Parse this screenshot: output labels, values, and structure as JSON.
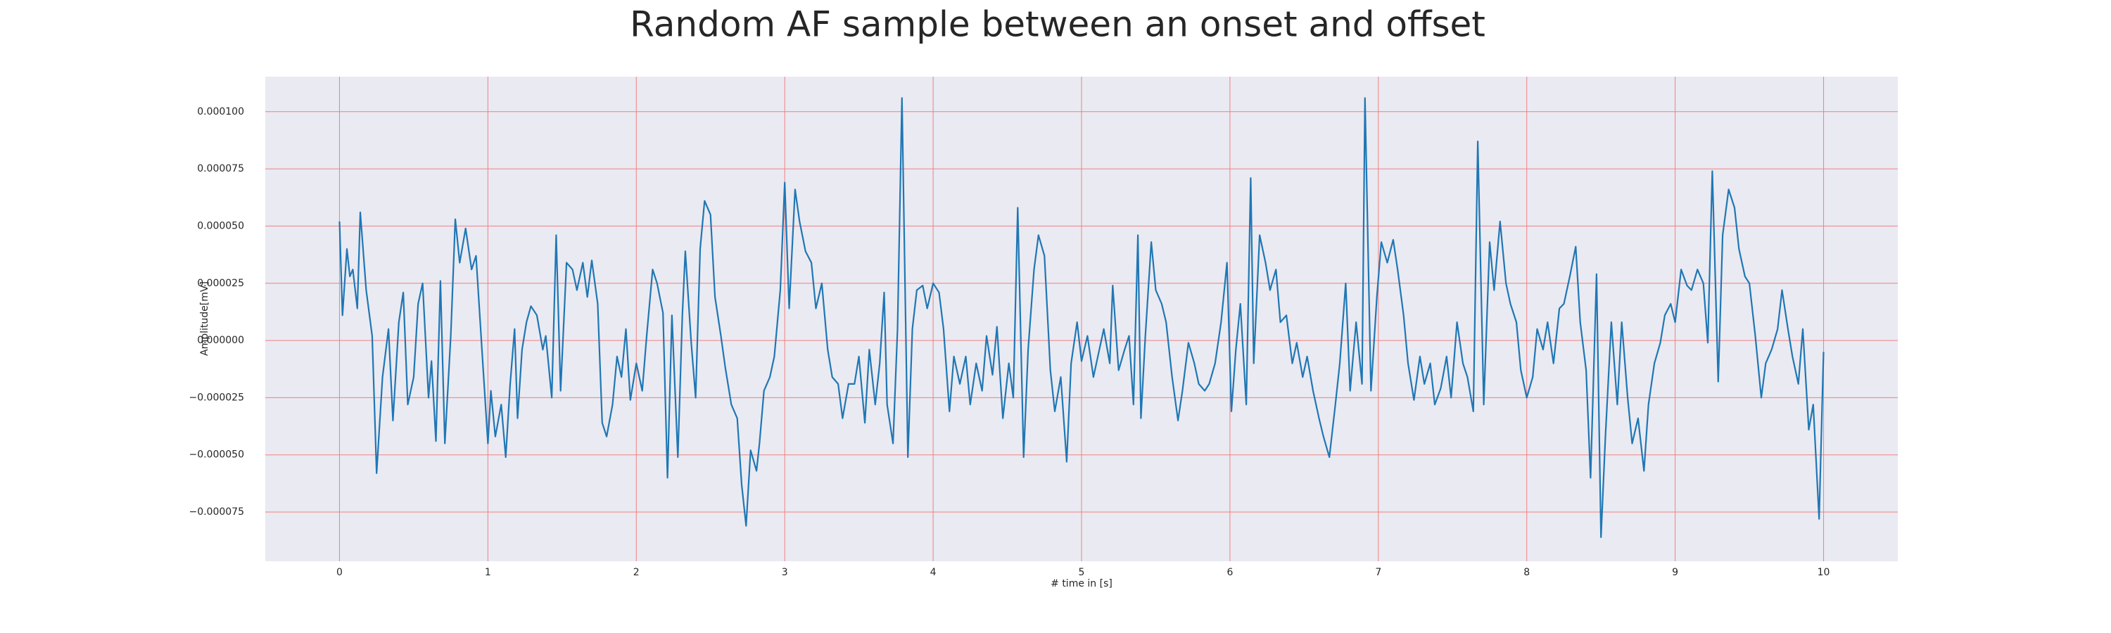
{
  "chart_data": {
    "type": "line",
    "title": "Random AF sample between an onset and offset",
    "xlabel": "# time in [s]",
    "ylabel": "Amplitude[mV]",
    "color": "#1f77b4",
    "grid": true,
    "grid_color": "#f08080",
    "background": "#eaeaf2",
    "xlim": [
      -0.5,
      10.5
    ],
    "ylim": [
      -9.65e-05,
      0.0001153
    ],
    "xticks": [
      0,
      1,
      2,
      3,
      4,
      5,
      6,
      7,
      8,
      9,
      10
    ],
    "yticks": [
      {
        "value": -7.5e-05,
        "label": "−0.000075"
      },
      {
        "value": -5e-05,
        "label": "−0.000050"
      },
      {
        "value": -2.5e-05,
        "label": "−0.000025"
      },
      {
        "value": 0,
        "label": "0.000000"
      },
      {
        "value": 2.5e-05,
        "label": "0.000025"
      },
      {
        "value": 5e-05,
        "label": "0.000050"
      },
      {
        "value": 7.5e-05,
        "label": "0.000075"
      },
      {
        "value": 0.0001,
        "label": "0.000100"
      }
    ],
    "x": [
      0,
      0.02,
      0.05,
      0.07,
      0.09,
      0.12,
      0.14,
      0.18,
      0.22,
      0.25,
      0.29,
      0.33,
      0.36,
      0.4,
      0.43,
      0.46,
      0.5,
      0.53,
      0.56,
      0.6,
      0.62,
      0.65,
      0.68,
      0.71,
      0.75,
      0.78,
      0.81,
      0.85,
      0.89,
      0.92,
      0.96,
      1.0,
      1.02,
      1.05,
      1.09,
      1.12,
      1.15,
      1.18,
      1.2,
      1.23,
      1.26,
      1.29,
      1.33,
      1.37,
      1.39,
      1.43,
      1.46,
      1.49,
      1.53,
      1.57,
      1.6,
      1.64,
      1.67,
      1.7,
      1.74,
      1.77,
      1.8,
      1.84,
      1.87,
      1.9,
      1.93,
      1.96,
      2.0,
      2.04,
      2.07,
      2.11,
      2.14,
      2.18,
      2.21,
      2.24,
      2.28,
      2.31,
      2.33,
      2.37,
      2.4,
      2.43,
      2.46,
      2.5,
      2.53,
      2.57,
      2.6,
      2.64,
      2.68,
      2.71,
      2.74,
      2.77,
      2.81,
      2.83,
      2.86,
      2.9,
      2.93,
      2.97,
      3.0,
      3.03,
      3.07,
      3.1,
      3.14,
      3.18,
      3.21,
      3.25,
      3.29,
      3.32,
      3.36,
      3.39,
      3.43,
      3.47,
      3.5,
      3.54,
      3.57,
      3.61,
      3.64,
      3.67,
      3.69,
      3.73,
      3.76,
      3.79,
      3.83,
      3.86,
      3.89,
      3.93,
      3.96,
      4.0,
      4.04,
      4.07,
      4.11,
      4.14,
      4.18,
      4.22,
      4.25,
      4.29,
      4.33,
      4.36,
      4.4,
      4.43,
      4.47,
      4.51,
      4.54,
      4.57,
      4.61,
      4.64,
      4.68,
      4.71,
      4.75,
      4.79,
      4.82,
      4.86,
      4.9,
      4.93,
      4.97,
      5.0,
      5.04,
      5.08,
      5.11,
      5.15,
      5.19,
      5.21,
      5.25,
      5.29,
      5.32,
      5.35,
      5.38,
      5.4,
      5.43,
      5.47,
      5.5,
      5.54,
      5.57,
      5.61,
      5.65,
      5.68,
      5.72,
      5.76,
      5.79,
      5.83,
      5.86,
      5.9,
      5.94,
      5.98,
      6.01,
      6.04,
      6.07,
      6.11,
      6.14,
      6.16,
      6.2,
      6.24,
      6.27,
      6.31,
      6.34,
      6.38,
      6.42,
      6.45,
      6.49,
      6.52,
      6.56,
      6.6,
      6.63,
      6.67,
      6.71,
      6.74,
      6.78,
      6.81,
      6.85,
      6.89,
      6.91,
      6.95,
      6.99,
      7.02,
      7.06,
      7.1,
      7.13,
      7.17,
      7.2,
      7.24,
      7.28,
      7.31,
      7.35,
      7.38,
      7.42,
      7.46,
      7.49,
      7.53,
      7.57,
      7.6,
      7.64,
      7.67,
      7.71,
      7.75,
      7.78,
      7.82,
      7.86,
      7.89,
      7.93,
      7.96,
      8.0,
      8.04,
      8.07,
      8.11,
      8.14,
      8.18,
      8.22,
      8.25,
      8.29,
      8.33,
      8.36,
      8.4,
      8.43,
      8.47,
      8.5,
      8.53,
      8.57,
      8.61,
      8.64,
      8.68,
      8.71,
      8.75,
      8.79,
      8.82,
      8.86,
      8.9,
      8.93,
      8.97,
      9.0,
      9.04,
      9.08,
      9.11,
      9.15,
      9.19,
      9.22,
      9.25,
      9.29,
      9.32,
      9.36,
      9.4,
      9.43,
      9.47,
      9.5,
      9.54,
      9.58,
      9.61,
      9.65,
      9.69,
      9.72,
      9.76,
      9.79,
      9.83,
      9.86,
      9.9,
      9.93,
      9.97,
      10.0
    ],
    "values": [
      5.2e-05,
      1.1e-05,
      4e-05,
      2.8e-05,
      3.1e-05,
      1.4e-05,
      5.6e-05,
      2.2e-05,
      2e-06,
      -5.8e-05,
      -1.6e-05,
      5e-06,
      -3.5e-05,
      8e-06,
      2.1e-05,
      -2.8e-05,
      -1.6e-05,
      1.6e-05,
      2.5e-05,
      -2.5e-05,
      -9e-06,
      -4.4e-05,
      2.6e-05,
      -4.5e-05,
      2e-06,
      5.3e-05,
      3.4e-05,
      4.9e-05,
      3.1e-05,
      3.7e-05,
      -4e-06,
      -4.5e-05,
      -2.2e-05,
      -4.2e-05,
      -2.8e-05,
      -5.1e-05,
      -1.9e-05,
      5e-06,
      -3.4e-05,
      -4e-06,
      8e-06,
      1.5e-05,
      1.1e-05,
      -4e-06,
      2e-06,
      -2.5e-05,
      4.6e-05,
      -2.2e-05,
      3.4e-05,
      3.1e-05,
      2.2e-05,
      3.4e-05,
      1.9e-05,
      3.5e-05,
      1.6e-05,
      -3.6e-05,
      -4.2e-05,
      -2.8e-05,
      -7e-06,
      -1.6e-05,
      5e-06,
      -2.6e-05,
      -1e-05,
      -2.2e-05,
      2e-06,
      3.1e-05,
      2.5e-05,
      1.2e-05,
      -6e-05,
      1.1e-05,
      -5.1e-05,
      1.1e-05,
      3.9e-05,
      -1e-06,
      -2.5e-05,
      4e-05,
      6.1e-05,
      5.5e-05,
      1.9e-05,
      2e-06,
      -1.2e-05,
      -2.8e-05,
      -3.4e-05,
      -6.3e-05,
      -8.1e-05,
      -4.8e-05,
      -5.7e-05,
      -4.5e-05,
      -2.2e-05,
      -1.6e-05,
      -7e-06,
      2.2e-05,
      6.9e-05,
      1.4e-05,
      6.6e-05,
      5.2e-05,
      3.9e-05,
      3.4e-05,
      1.4e-05,
      2.5e-05,
      -4e-06,
      -1.6e-05,
      -1.9e-05,
      -3.4e-05,
      -1.9e-05,
      -1.9e-05,
      -7e-06,
      -3.6e-05,
      -4e-06,
      -2.8e-05,
      -1e-05,
      2.1e-05,
      -2.8e-05,
      -4.5e-05,
      5e-06,
      0.000106,
      -5.1e-05,
      5e-06,
      2.2e-05,
      2.4e-05,
      1.4e-05,
      2.5e-05,
      2.1e-05,
      5e-06,
      -3.1e-05,
      -7e-06,
      -1.9e-05,
      -7e-06,
      -2.8e-05,
      -1e-05,
      -2.2e-05,
      2e-06,
      -1.5e-05,
      6e-06,
      -3.4e-05,
      -1e-05,
      -2.5e-05,
      5.8e-05,
      -5.1e-05,
      -4e-06,
      3.1e-05,
      4.6e-05,
      3.7e-05,
      -1.3e-05,
      -3.1e-05,
      -1.6e-05,
      -5.3e-05,
      -1e-05,
      8e-06,
      -9e-06,
      2e-06,
      -1.6e-05,
      -7e-06,
      5e-06,
      -1e-05,
      2.4e-05,
      -1.3e-05,
      -4e-06,
      2e-06,
      -2.8e-05,
      4.6e-05,
      -3.4e-05,
      2e-06,
      4.3e-05,
      2.2e-05,
      1.6e-05,
      8e-06,
      -1.6e-05,
      -3.5e-05,
      -2.2e-05,
      -1e-06,
      -1e-05,
      -1.9e-05,
      -2.2e-05,
      -1.9e-05,
      -1e-05,
      8e-06,
      3.4e-05,
      -3.1e-05,
      -4e-06,
      1.6e-05,
      -2.8e-05,
      7.1e-05,
      -1e-05,
      4.6e-05,
      3.4e-05,
      2.2e-05,
      3.1e-05,
      8e-06,
      1.1e-05,
      -1e-05,
      -1e-06,
      -1.6e-05,
      -7e-06,
      -2.2e-05,
      -3.4e-05,
      -4.2e-05,
      -5.1e-05,
      -2.8e-05,
      -1e-05,
      2.5e-05,
      -2.2e-05,
      8e-06,
      -1.9e-05,
      0.000106,
      -2.2e-05,
      1.9e-05,
      4.3e-05,
      3.4e-05,
      4.4e-05,
      3.1e-05,
      1.1e-05,
      -1e-05,
      -2.6e-05,
      -7e-06,
      -1.9e-05,
      -1e-05,
      -2.8e-05,
      -2.1e-05,
      -7e-06,
      -2.5e-05,
      8e-06,
      -1e-05,
      -1.6e-05,
      -3.1e-05,
      8.7e-05,
      -2.8e-05,
      4.3e-05,
      2.2e-05,
      5.2e-05,
      2.5e-05,
      1.6e-05,
      8e-06,
      -1.3e-05,
      -2.5e-05,
      -1.6e-05,
      5e-06,
      -4e-06,
      8e-06,
      -1e-05,
      1.4e-05,
      1.6e-05,
      2.8e-05,
      4.1e-05,
      8e-06,
      -1.3e-05,
      -6e-05,
      2.9e-05,
      -8.6e-05,
      -4.2e-05,
      8e-06,
      -2.8e-05,
      8e-06,
      -2.5e-05,
      -4.5e-05,
      -3.4e-05,
      -5.7e-05,
      -2.8e-05,
      -1e-05,
      -1e-06,
      1.1e-05,
      1.6e-05,
      8e-06,
      3.1e-05,
      2.4e-05,
      2.2e-05,
      3.1e-05,
      2.5e-05,
      -1e-06,
      7.4e-05,
      -1.8e-05,
      4.6e-05,
      6.6e-05,
      5.8e-05,
      4e-05,
      2.8e-05,
      2.5e-05,
      2e-06,
      -2.5e-05,
      -1e-05,
      -4e-06,
      5e-06,
      2.2e-05,
      5e-06,
      -7e-06,
      -1.9e-05,
      5e-06,
      -3.9e-05,
      -2.8e-05,
      -7.8e-05,
      -5e-06
    ]
  }
}
